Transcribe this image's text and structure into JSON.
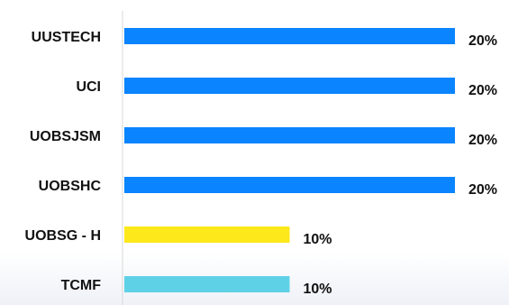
{
  "chart_data": {
    "type": "bar",
    "orientation": "horizontal",
    "categories": [
      "UUSTECH",
      "UCI",
      "UOBSJSM",
      "UOBSHC",
      "UOBSG - H",
      "TCMF"
    ],
    "values": [
      20,
      20,
      20,
      20,
      10,
      10
    ],
    "value_labels": [
      "20%",
      "20%",
      "20%",
      "20%",
      "10%",
      "10%"
    ],
    "colors": [
      "#0a84ff",
      "#0a84ff",
      "#0a84ff",
      "#0a84ff",
      "#fce81b",
      "#5fd1e6"
    ],
    "xlim": [
      0,
      20
    ],
    "grid": false,
    "legend": "none"
  }
}
